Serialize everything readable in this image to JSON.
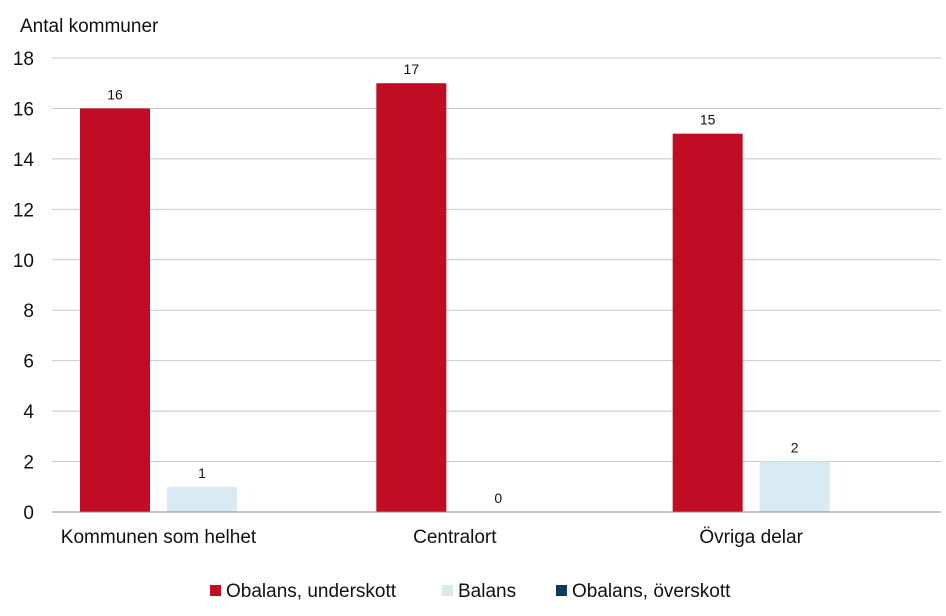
{
  "chart_data": {
    "type": "bar",
    "ylabel": "Antal kommuner",
    "xlabel": "",
    "title": "",
    "ylim": [
      0,
      18
    ],
    "ytick_step": 2,
    "grid": true,
    "legend_position": "bottom",
    "categories": [
      "Kommunen som helhet",
      "Centralort",
      "Övriga delar"
    ],
    "series": [
      {
        "name": "Obalans, underskott",
        "color": "#c00d24",
        "values": [
          16,
          17,
          15
        ]
      },
      {
        "name": "Balans",
        "color": "#daeaf3",
        "values": [
          1,
          0,
          2
        ]
      },
      {
        "name": "Obalans, överskott",
        "color": "#0c3c5c",
        "values": [
          null,
          null,
          null
        ]
      }
    ]
  }
}
